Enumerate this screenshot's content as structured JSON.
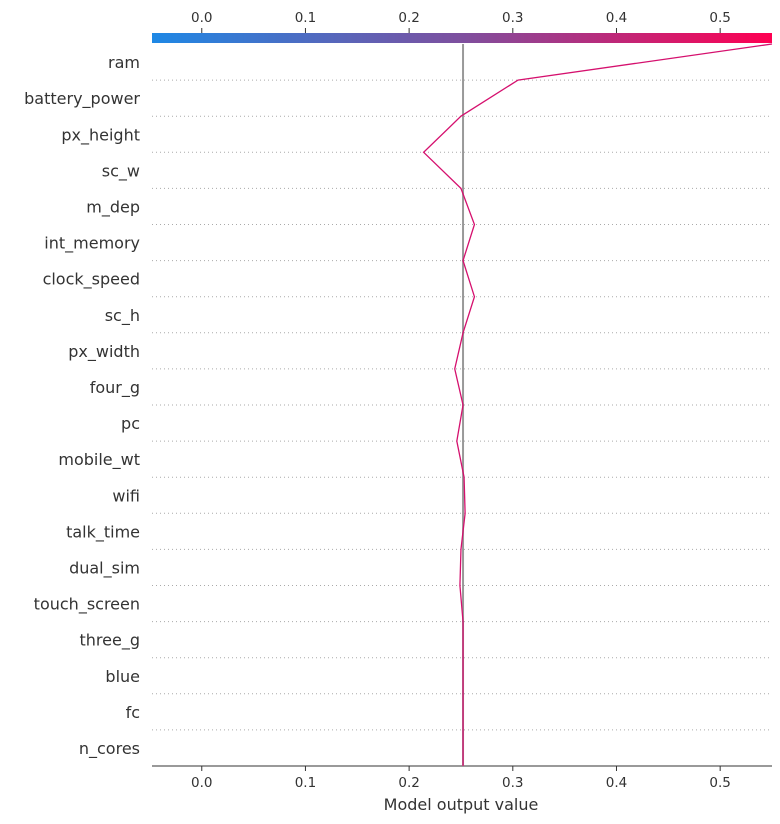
{
  "chart_data": {
    "type": "line",
    "title": "",
    "xlabel": "Model output value",
    "ylabel": "",
    "xlim": [
      -0.048,
      0.55
    ],
    "xticks": [
      "0.0",
      "0.1",
      "0.2",
      "0.3",
      "0.4",
      "0.5"
    ],
    "base_value": 0.252,
    "grid": "dotted-horizontal",
    "features": [
      "ram",
      "battery_power",
      "px_height",
      "sc_w",
      "m_dep",
      "int_memory",
      "clock_speed",
      "sc_h",
      "px_width",
      "four_g",
      "pc",
      "mobile_wt",
      "wifi",
      "talk_time",
      "dual_sim",
      "touch_screen",
      "three_g",
      "blue",
      "fc",
      "n_cores"
    ],
    "path": [
      0.55,
      0.305,
      0.25,
      0.214,
      0.25,
      0.263,
      0.252,
      0.263,
      0.252,
      0.244,
      0.252,
      0.246,
      0.253,
      0.254,
      0.25,
      0.249,
      0.252,
      0.252,
      0.252,
      0.252,
      0.252
    ],
    "colors": {
      "low": "#1e88e5",
      "mid": "#7e4f9e",
      "high": "#ff0052",
      "line": "#d5106e",
      "base_line": "#999999",
      "text": "#333333"
    }
  }
}
